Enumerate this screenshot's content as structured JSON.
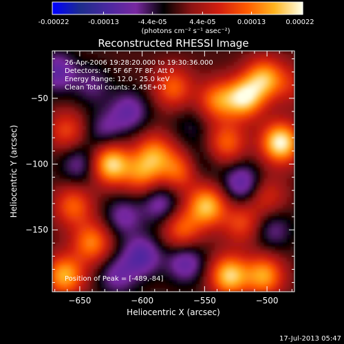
{
  "chart_data": {
    "type": "heatmap",
    "title": "Reconstructed RHESSI Image",
    "xlabel": "Heliocentric X (arcsec)",
    "ylabel": "Heliocentric Y (arcsec)",
    "xlim": [
      -672,
      -478
    ],
    "ylim": [
      -197,
      -14
    ],
    "x_ticks": [
      -650,
      -600,
      -550,
      -500
    ],
    "y_ticks": [
      -50,
      -100,
      -150
    ],
    "colorbar": {
      "min": -0.00022,
      "max": 0.00022,
      "tick_values": [
        -0.00022,
        -0.00013,
        -4.4e-05,
        4.4e-05,
        0.00013,
        0.00022
      ],
      "tick_labels": [
        "-0.00022",
        "-0.00013",
        "-4.4e-05",
        "4.4e-05",
        "0.00013",
        "0.00022"
      ],
      "unit_label": "(photons cm⁻² s⁻¹ asec⁻²)",
      "colormap": [
        "#0000ff",
        "#1e2d8c",
        "#4b28a0",
        "#7828a0",
        "#000000",
        "#8c1414",
        "#d21e0f",
        "#ff5a00",
        "#ffb41e",
        "#ffffe6"
      ]
    },
    "annotations": [
      "26-Apr-2006 19:28:20.000 to 19:30:36.000",
      "Detectors: 4F 5F 6F 7F 8F, Att 0",
      "Energy Range: 12.0 - 25.0 keV",
      "Clean     Total counts: 2.45E+03",
      "Position of Peak = [-489,-84]"
    ],
    "peak": {
      "x": -489,
      "y": -84
    },
    "sources": [
      {
        "x": -489,
        "y": -84,
        "value": 0.00022
      },
      {
        "x": -518,
        "y": -50,
        "value": 0.00019
      },
      {
        "x": -502,
        "y": -35,
        "value": 0.00016
      },
      {
        "x": -575,
        "y": -42,
        "value": 0.00012
      },
      {
        "x": -540,
        "y": -52,
        "value": 0.00013
      },
      {
        "x": -532,
        "y": -84,
        "value": 0.00012
      },
      {
        "x": -625,
        "y": -100,
        "value": 0.0002
      },
      {
        "x": -590,
        "y": -92,
        "value": 0.00013
      },
      {
        "x": -600,
        "y": -108,
        "value": 0.00012
      },
      {
        "x": -570,
        "y": -105,
        "value": 0.00013
      },
      {
        "x": -548,
        "y": -132,
        "value": 0.00018
      },
      {
        "x": -568,
        "y": -150,
        "value": 0.00012
      },
      {
        "x": -655,
        "y": -132,
        "value": 0.00012
      },
      {
        "x": -640,
        "y": -160,
        "value": 0.00014
      },
      {
        "x": -662,
        "y": -185,
        "value": 0.00017
      },
      {
        "x": -530,
        "y": -185,
        "value": 0.00019
      },
      {
        "x": -502,
        "y": -185,
        "value": 0.00016
      },
      {
        "x": -520,
        "y": -145,
        "value": 0.0001
      },
      {
        "x": -660,
        "y": -75,
        "value": 0.0001
      },
      {
        "x": -500,
        "y": -125,
        "value": 8e-05
      },
      {
        "x": -640,
        "y": -40,
        "value": -6e-05
      },
      {
        "x": -610,
        "y": -60,
        "value": -9e-05
      },
      {
        "x": -630,
        "y": -75,
        "value": -7e-05
      },
      {
        "x": -650,
        "y": -100,
        "value": -8e-05
      },
      {
        "x": -585,
        "y": -130,
        "value": -9e-05
      },
      {
        "x": -615,
        "y": -140,
        "value": -8e-05
      },
      {
        "x": -600,
        "y": -170,
        "value": -0.00011
      },
      {
        "x": -565,
        "y": -175,
        "value": -0.0001
      },
      {
        "x": -555,
        "y": -100,
        "value": -5e-05
      },
      {
        "x": -520,
        "y": -115,
        "value": -0.00011
      },
      {
        "x": -495,
        "y": -150,
        "value": -7e-05
      },
      {
        "x": -620,
        "y": -185,
        "value": -8e-05
      },
      {
        "x": -668,
        "y": -30,
        "value": -0.0001
      },
      {
        "x": -560,
        "y": -72,
        "value": -4e-05
      },
      {
        "x": -480,
        "y": -40,
        "value": 6e-05
      }
    ],
    "grid": false
  },
  "footer": {
    "timestamp": "17-Jul-2013 05:47"
  }
}
